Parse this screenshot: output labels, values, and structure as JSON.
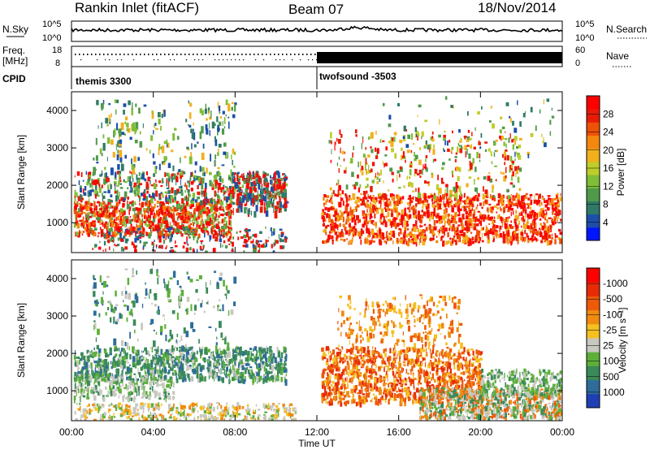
{
  "header": {
    "station": "Rankin Inlet (fitACF)",
    "beam": "Beam 07",
    "date": "18/Nov/2014"
  },
  "noise_panel": {
    "left_label": "N.Sky",
    "right_label": "N.Search",
    "left_ticks": [
      "10^5",
      "10^0"
    ],
    "right_ticks": [
      "10^5",
      "10^0"
    ]
  },
  "freq_panel": {
    "left_label_1": "Freq.",
    "left_label_2": "[MHz]",
    "right_label": "Nave",
    "left_ticks": [
      "18",
      "8"
    ],
    "right_ticks": [
      "60",
      "0"
    ],
    "cpid_label": "CPID",
    "cpid_1": "themis 3300",
    "cpid_2": "twofsound -3503"
  },
  "time_axis": {
    "ticks": [
      "00:00",
      "04:00",
      "08:00",
      "12:00",
      "16:00",
      "20:00",
      "00:00"
    ],
    "xlabel": "Time UT"
  },
  "chart_data": [
    {
      "type": "heatmap",
      "title": "",
      "xlabel": "Time UT",
      "ylabel": "Slant Range [km]",
      "y_ticks": [
        "1000",
        "2000",
        "3000",
        "4000"
      ],
      "ylim": [
        200,
        4500
      ],
      "xlim_hours": [
        0,
        24
      ],
      "colorbar": {
        "label": "Power [dB]",
        "ticks": [
          "4",
          "8",
          "12",
          "16",
          "20",
          "24",
          "28"
        ],
        "range": [
          0,
          32
        ],
        "colors": [
          "#0016ff",
          "#1d4fa8",
          "#2f7a66",
          "#4f9a4a",
          "#7fbe36",
          "#bfcd2a",
          "#f2b01c",
          "#f5860e",
          "#ef5108",
          "#e81c06",
          "#ff0000"
        ]
      }
    },
    {
      "type": "heatmap",
      "title": "",
      "xlabel": "Time UT",
      "ylabel": "Slant Range [km]",
      "y_ticks": [
        "1000",
        "2000",
        "3000",
        "4000"
      ],
      "ylim": [
        200,
        4500
      ],
      "xlim_hours": [
        0,
        24
      ],
      "colorbar": {
        "label": "Velocity [m s⁻¹]",
        "ticks": [
          "1000",
          "500",
          "100",
          "25",
          "-25",
          "-100",
          "-500",
          "-1000"
        ],
        "colors": [
          "#1f3fb5",
          "#2e6c9a",
          "#3a8a5a",
          "#5cb03a",
          "#c8c8c0",
          "#f5c020",
          "#f08a10",
          "#ee5a0a",
          "#e82a06",
          "#ff0000"
        ]
      }
    }
  ]
}
